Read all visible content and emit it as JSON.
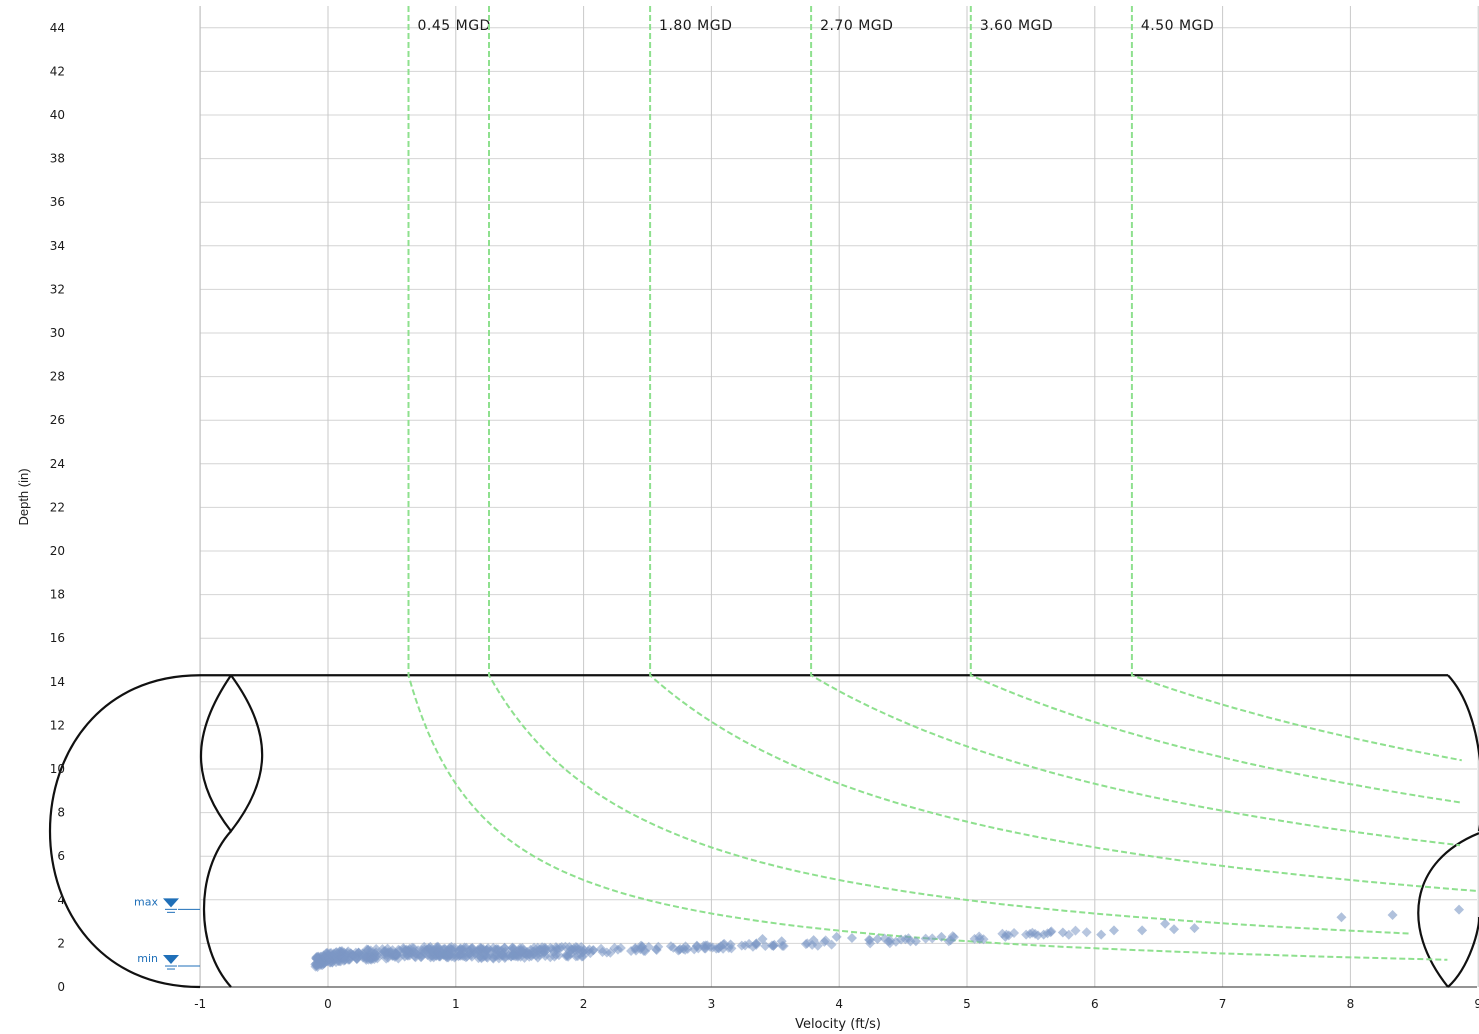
{
  "chart_data": {
    "type": "scatter",
    "xlabel": "Velocity (ft/s)",
    "ylabel": "Depth (in)",
    "xlim": [
      -1,
      9
    ],
    "ylim": [
      0,
      45
    ],
    "x_ticks": [
      -1,
      0,
      1,
      2,
      3,
      4,
      5,
      6,
      7,
      8,
      9
    ],
    "y_ticks": [
      0,
      2,
      4,
      6,
      8,
      10,
      12,
      14,
      16,
      18,
      20,
      22,
      24,
      26,
      28,
      30,
      32,
      34,
      36,
      38,
      40,
      42,
      44
    ],
    "grid": true,
    "pipe_diameter_in": 14.3,
    "iso_flow_curves": [
      {
        "name": "0.45 MGD",
        "label": "0.45 MGD",
        "full_pipe_velocity": 0.63
      },
      {
        "name": "",
        "label": "",
        "full_pipe_velocity": 1.26
      },
      {
        "name": "1.80 MGD",
        "label": "1.80 MGD",
        "full_pipe_velocity": 2.52
      },
      {
        "name": "2.70 MGD",
        "label": "2.70 MGD",
        "full_pipe_velocity": 3.78
      },
      {
        "name": "3.60 MGD",
        "label": "3.60 MGD",
        "full_pipe_velocity": 5.03
      },
      {
        "name": "4.50 MGD",
        "label": "4.50 MGD",
        "full_pipe_velocity": 6.29
      }
    ],
    "level_markers": [
      {
        "label": "max",
        "depth": 3.7
      },
      {
        "label": "min",
        "depth": 1.1
      }
    ],
    "scatter_trend": [
      [
        -0.1,
        1.1
      ],
      [
        0.0,
        1.35
      ],
      [
        0.2,
        1.45
      ],
      [
        0.5,
        1.55
      ],
      [
        0.8,
        1.6
      ],
      [
        1.0,
        1.6
      ],
      [
        1.3,
        1.55
      ],
      [
        1.6,
        1.58
      ],
      [
        2.0,
        1.65
      ],
      [
        2.5,
        1.75
      ],
      [
        3.0,
        1.85
      ],
      [
        3.5,
        1.95
      ],
      [
        4.0,
        2.05
      ],
      [
        4.5,
        2.15
      ],
      [
        5.0,
        2.25
      ],
      [
        5.5,
        2.4
      ],
      [
        6.0,
        2.55
      ]
    ],
    "scatter_outliers": [
      [
        3.4,
        2.2
      ],
      [
        3.55,
        2.1
      ],
      [
        3.8,
        2.15
      ],
      [
        3.98,
        2.3
      ],
      [
        4.1,
        2.25
      ],
      [
        4.3,
        2.2
      ],
      [
        4.6,
        2.1
      ],
      [
        4.8,
        2.3
      ],
      [
        5.1,
        2.2
      ],
      [
        5.3,
        2.3
      ],
      [
        5.6,
        2.4
      ],
      [
        5.75,
        2.5
      ],
      [
        6.05,
        2.4
      ],
      [
        6.15,
        2.6
      ],
      [
        6.37,
        2.6
      ],
      [
        6.55,
        2.9
      ],
      [
        6.62,
        2.65
      ],
      [
        6.78,
        2.7
      ],
      [
        7.93,
        3.2
      ],
      [
        8.33,
        3.3
      ],
      [
        8.85,
        3.55
      ],
      [
        2.45,
        1.9
      ],
      [
        2.78,
        1.75
      ],
      [
        3.15,
        1.95
      ],
      [
        0.6,
        1.4
      ],
      [
        0.9,
        1.5
      ],
      [
        1.45,
        1.45
      ]
    ]
  }
}
